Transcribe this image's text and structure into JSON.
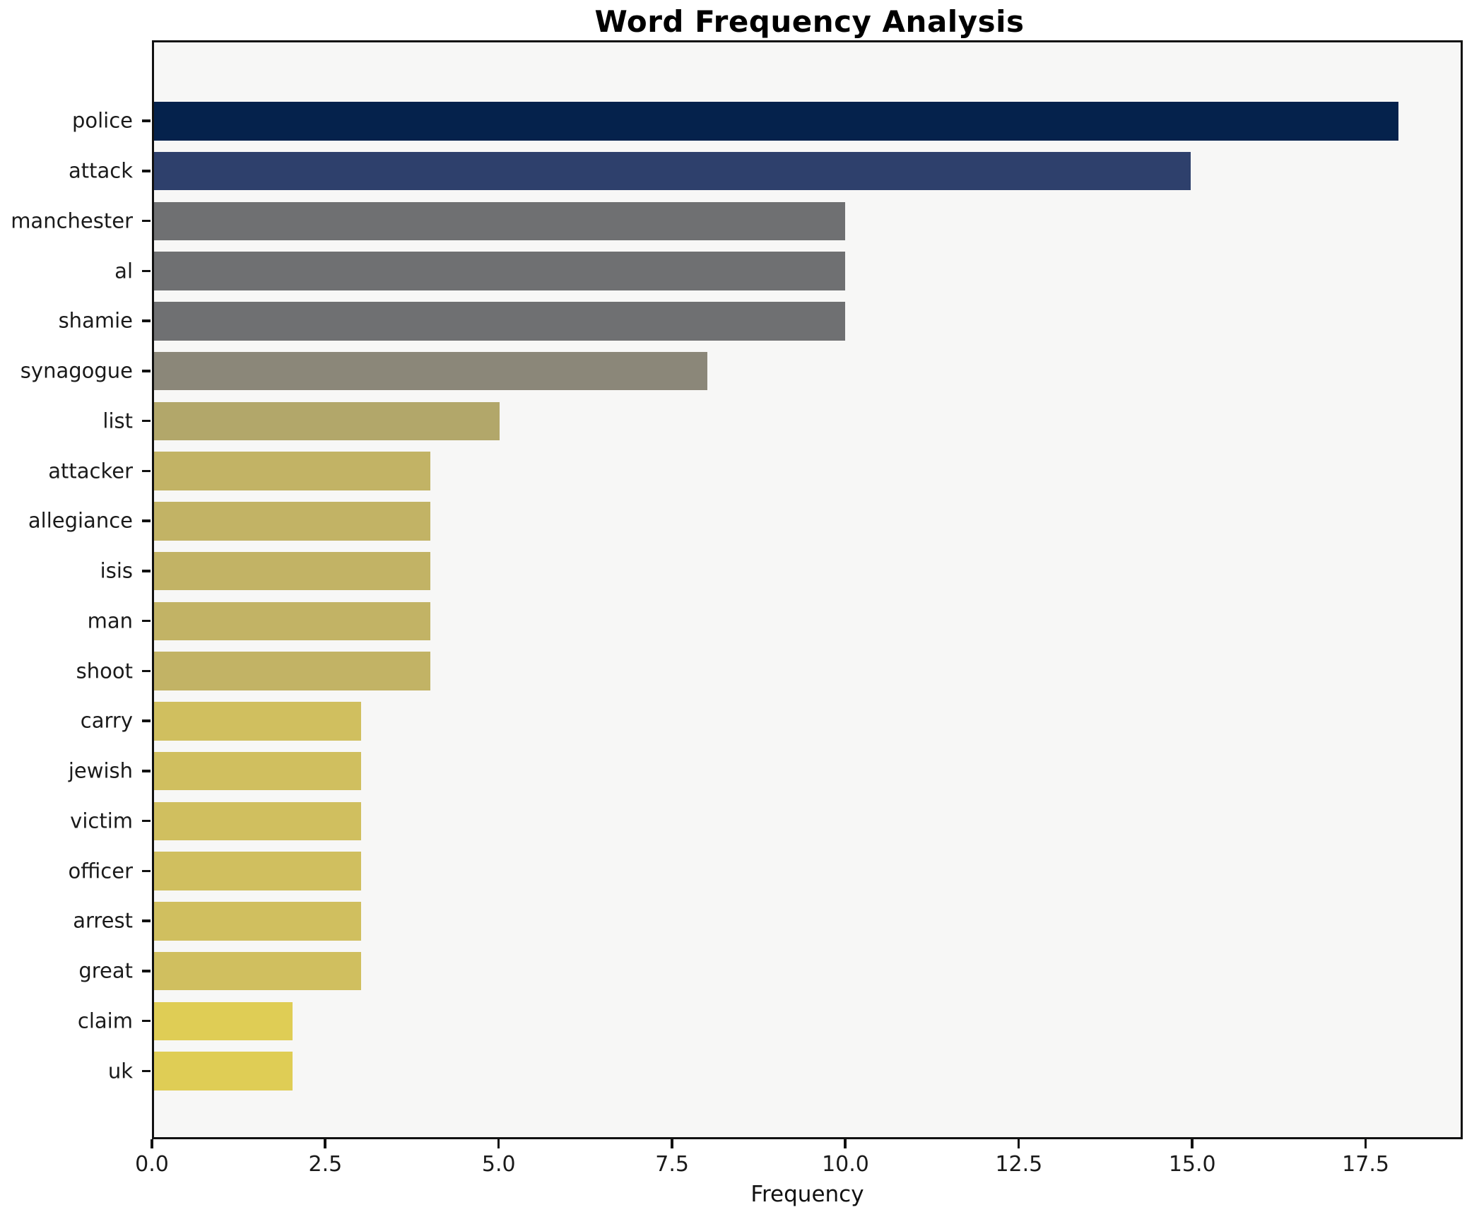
{
  "chart_data": {
    "type": "bar",
    "orientation": "horizontal",
    "title": "Word Frequency Analysis",
    "xlabel": "Frequency",
    "ylabel": "",
    "xlim": [
      0,
      18.9
    ],
    "grid": false,
    "legend": "none",
    "plot_background": "#f7f7f6",
    "figure_background": "#ffffff",
    "x_ticks": [
      {
        "value": 0,
        "label": "0.0"
      },
      {
        "value": 2.5,
        "label": "2.5"
      },
      {
        "value": 5,
        "label": "5.0"
      },
      {
        "value": 7.5,
        "label": "7.5"
      },
      {
        "value": 10,
        "label": "10.0"
      },
      {
        "value": 12.5,
        "label": "12.5"
      },
      {
        "value": 15,
        "label": "15.0"
      },
      {
        "value": 17.5,
        "label": "17.5"
      }
    ],
    "bars": [
      {
        "label": "police",
        "value": 18,
        "color": "#05224c"
      },
      {
        "label": "attack",
        "value": 15,
        "color": "#2e406c"
      },
      {
        "label": "manchester",
        "value": 10,
        "color": "#6f7072"
      },
      {
        "label": "al",
        "value": 10,
        "color": "#6f7072"
      },
      {
        "label": "shamie",
        "value": 10,
        "color": "#6f7072"
      },
      {
        "label": "synagogue",
        "value": 8,
        "color": "#8b8779"
      },
      {
        "label": "list",
        "value": 5,
        "color": "#b2a76a"
      },
      {
        "label": "attacker",
        "value": 4,
        "color": "#c2b365"
      },
      {
        "label": "allegiance",
        "value": 4,
        "color": "#c2b365"
      },
      {
        "label": "isis",
        "value": 4,
        "color": "#c2b365"
      },
      {
        "label": "man",
        "value": 4,
        "color": "#c2b365"
      },
      {
        "label": "shoot",
        "value": 4,
        "color": "#c2b365"
      },
      {
        "label": "carry",
        "value": 3,
        "color": "#d0bf5f"
      },
      {
        "label": "jewish",
        "value": 3,
        "color": "#d0bf5f"
      },
      {
        "label": "victim",
        "value": 3,
        "color": "#d0bf5f"
      },
      {
        "label": "officer",
        "value": 3,
        "color": "#d0bf5f"
      },
      {
        "label": "arrest",
        "value": 3,
        "color": "#d0bf5f"
      },
      {
        "label": "great",
        "value": 3,
        "color": "#d0bf5f"
      },
      {
        "label": "claim",
        "value": 2,
        "color": "#dfcd55"
      },
      {
        "label": "uk",
        "value": 2,
        "color": "#dfcd55"
      }
    ]
  }
}
